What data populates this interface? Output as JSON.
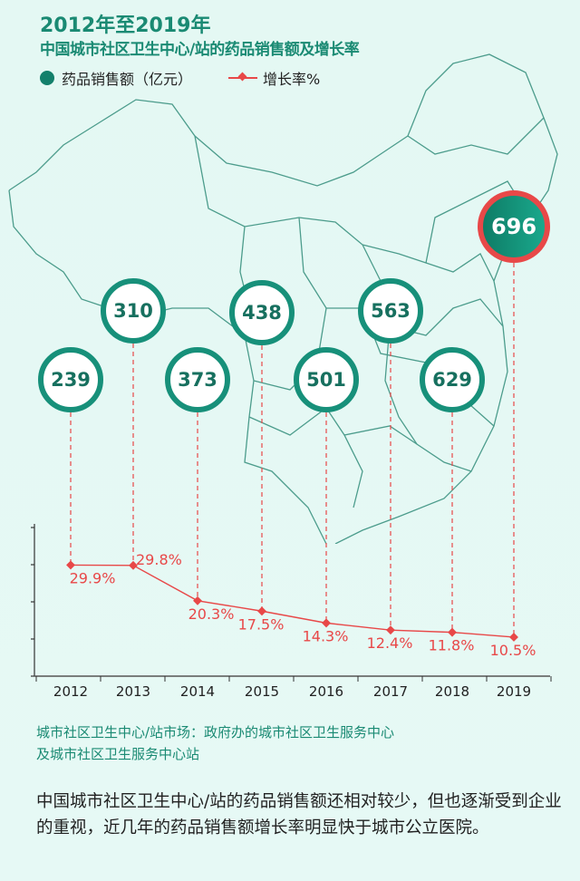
{
  "title_line1": "2012年至2019年",
  "title_line2": "中国城市社区卫生中心/站的药品销售额及增长率",
  "legend": {
    "sales": "药品销售额（亿元）",
    "growth": "增长率%"
  },
  "colors": {
    "teal": "#17907a",
    "red": "#e84848"
  },
  "chart_data": {
    "type": "line",
    "categories": [
      "2012",
      "2013",
      "2014",
      "2015",
      "2016",
      "2017",
      "2018",
      "2019"
    ],
    "series": [
      {
        "name": "药品销售额（亿元）",
        "kind": "bubble",
        "values": [
          239,
          310,
          373,
          438,
          501,
          563,
          629,
          696
        ]
      },
      {
        "name": "增长率%",
        "kind": "line",
        "values": [
          29.9,
          29.8,
          20.3,
          17.5,
          14.3,
          12.4,
          11.8,
          10.5
        ],
        "labels": [
          "29.9%",
          "29.8%",
          "20.3%",
          "17.5%",
          "14.3%",
          "12.4%",
          "11.8%",
          "10.5%"
        ]
      }
    ],
    "ylim": [
      0,
      40
    ],
    "yticks": [
      0,
      10,
      20,
      30,
      40
    ],
    "highlight": "2019"
  },
  "note": [
    "城市社区卫生中心/站市场：政府办的城市社区卫生服务中心",
    "及城市社区卫生服务中心站"
  ],
  "paragraph": "中国城市社区卫生中心/站的药品销售额还相对较少，但也逐渐受到企业的重视，近几年的药品销售额增长率明显快于城市公立医院。"
}
